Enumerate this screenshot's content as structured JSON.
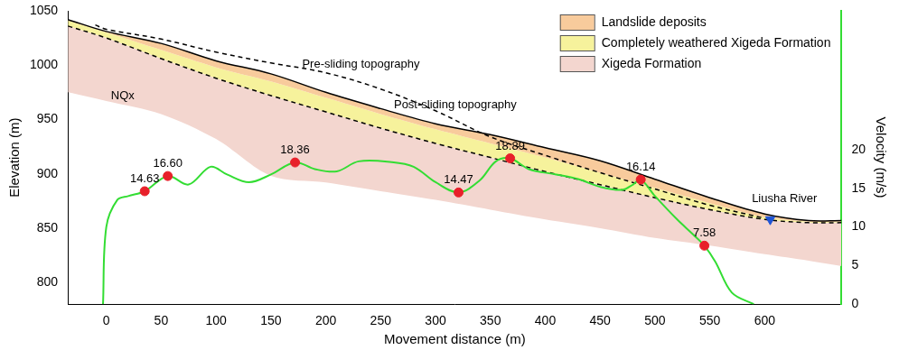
{
  "chart_data": {
    "type": "line",
    "x_label": "Movement distance (m)",
    "y_label": "Elevation (m)",
    "y2_label": "Velocity (m/s)",
    "xlim": [
      -35,
      670
    ],
    "xticks": [
      0,
      50,
      100,
      150,
      200,
      250,
      300,
      350,
      400,
      450,
      500,
      550,
      600
    ],
    "ylim": [
      780,
      1050
    ],
    "yticks": [
      800,
      850,
      900,
      950,
      1000,
      1050
    ],
    "y2lim": [
      0,
      38
    ],
    "y2ticks": [
      0,
      5,
      10,
      15,
      20
    ],
    "grid": false,
    "legend": "upper right",
    "series": [
      {
        "name": "Landslide deposits",
        "type": "area",
        "color": "#f8cb9c",
        "x": [
          -35,
          0,
          50,
          100,
          150,
          200,
          250,
          300,
          350,
          400,
          450,
          500,
          550,
          600,
          640,
          670
        ],
        "upper": [
          1042,
          1031,
          1020,
          1004,
          992,
          975,
          960,
          946,
          936,
          924,
          912,
          895,
          878,
          863,
          857,
          857
        ],
        "lower": [
          1041,
          1030,
          1014,
          998,
          985,
          970,
          955,
          941,
          928,
          915,
          901,
          887,
          873,
          860,
          856,
          856
        ]
      },
      {
        "name": "Completely weathered Xigeda Formation",
        "type": "area",
        "color": "#f6f29c",
        "x": [
          -35,
          0,
          50,
          100,
          150,
          200,
          250,
          300,
          350,
          400,
          450,
          500,
          550,
          600,
          640,
          670
        ],
        "upper": [
          1041,
          1030,
          1014,
          998,
          985,
          970,
          955,
          941,
          928,
          915,
          901,
          887,
          873,
          860,
          856,
          856
        ],
        "lower": [
          1036,
          1025,
          1006,
          988,
          972,
          957,
          942,
          928,
          915,
          902,
          890,
          878,
          867,
          858,
          855,
          855
        ]
      },
      {
        "name": "Xigeda Formation",
        "type": "area",
        "color": "#f3d6cf",
        "x": [
          -35,
          0,
          50,
          100,
          150,
          200,
          250,
          300,
          350,
          400,
          450,
          500,
          550,
          600,
          640,
          670
        ],
        "upper": [
          1036,
          1025,
          1006,
          988,
          972,
          957,
          942,
          928,
          915,
          902,
          890,
          878,
          867,
          858,
          855,
          855
        ],
        "lower": [
          975,
          967,
          955,
          932,
          898,
          892,
          884,
          876,
          867,
          858,
          850,
          841,
          834,
          826,
          820,
          815
        ]
      },
      {
        "type": "line",
        "color": "#000000",
        "line_style": "dashed",
        "x": [
          -35,
          0,
          50,
          100,
          150,
          200,
          250,
          300,
          350,
          400,
          450,
          500,
          550,
          600,
          640,
          670
        ],
        "values": [
          1036,
          1025,
          1006,
          988,
          972,
          957,
          942,
          928,
          915,
          902,
          890,
          878,
          867,
          858,
          855,
          855
        ]
      },
      {
        "type": "line",
        "color": "#000000",
        "line_style": "dashed",
        "x": [
          -10,
          0,
          50,
          100,
          150,
          200,
          250,
          300,
          350,
          400,
          450,
          500,
          550,
          600
        ],
        "values": [
          1037,
          1033,
          1024,
          1012,
          1002,
          993,
          978,
          958,
          934,
          917,
          901,
          886,
          871,
          859
        ]
      },
      {
        "type": "line",
        "color": "#000000",
        "line_style": "solid",
        "x": [
          -35,
          0,
          50,
          100,
          150,
          200,
          250,
          300,
          350,
          400,
          450,
          500,
          550,
          600,
          640,
          670
        ],
        "values": [
          1042,
          1031,
          1020,
          1004,
          992,
          975,
          960,
          946,
          936,
          924,
          912,
          895,
          878,
          863,
          857,
          857
        ]
      },
      {
        "type": "line",
        "axis": "y2",
        "color": "#33dd33",
        "line_style": "solid",
        "x": [
          -3,
          0,
          10,
          20,
          35,
          56,
          75,
          95,
          110,
          130,
          150,
          172,
          190,
          210,
          230,
          260,
          280,
          300,
          321,
          340,
          355,
          368,
          385,
          410,
          430,
          450,
          470,
          480,
          487,
          500,
          520,
          535,
          545,
          555,
          570,
          590
        ],
        "values": [
          0,
          10,
          13.5,
          14,
          14.63,
          16.6,
          15.5,
          17.8,
          16.8,
          15.8,
          16.8,
          18.36,
          17.5,
          17.2,
          18.5,
          18.4,
          17.8,
          15.8,
          14.47,
          16,
          18.5,
          18.89,
          17.5,
          16.8,
          16.2,
          15.2,
          14.8,
          15.5,
          16.14,
          14,
          11,
          9,
          7.58,
          5.5,
          1.5,
          0
        ]
      },
      {
        "type": "scatter",
        "axis": "y2",
        "color": "#e8202a",
        "marker": "circle",
        "data_labels": true,
        "x": [
          35,
          56,
          172,
          321,
          368,
          487,
          545
        ],
        "values": [
          14.63,
          16.6,
          18.36,
          14.47,
          18.89,
          16.14,
          7.58
        ],
        "value_labels": [
          "14.63",
          "16.60",
          "18.36",
          "14.47",
          "18.89",
          "16.14",
          "7.58"
        ]
      },
      {
        "type": "scatter",
        "color": "#1f55d6",
        "marker": "triangle_down",
        "x": [
          605
        ],
        "values": [
          858
        ]
      }
    ],
    "annotations": [
      {
        "text": "NQx",
        "x": 15,
        "y": 972
      },
      {
        "text": "Pre-sliding topography",
        "x": 232,
        "y": 1001
      },
      {
        "text": "Post-sliding topography",
        "x": 318,
        "y": 963
      },
      {
        "text": "Liusha River",
        "x": 618,
        "y": 877
      }
    ]
  }
}
